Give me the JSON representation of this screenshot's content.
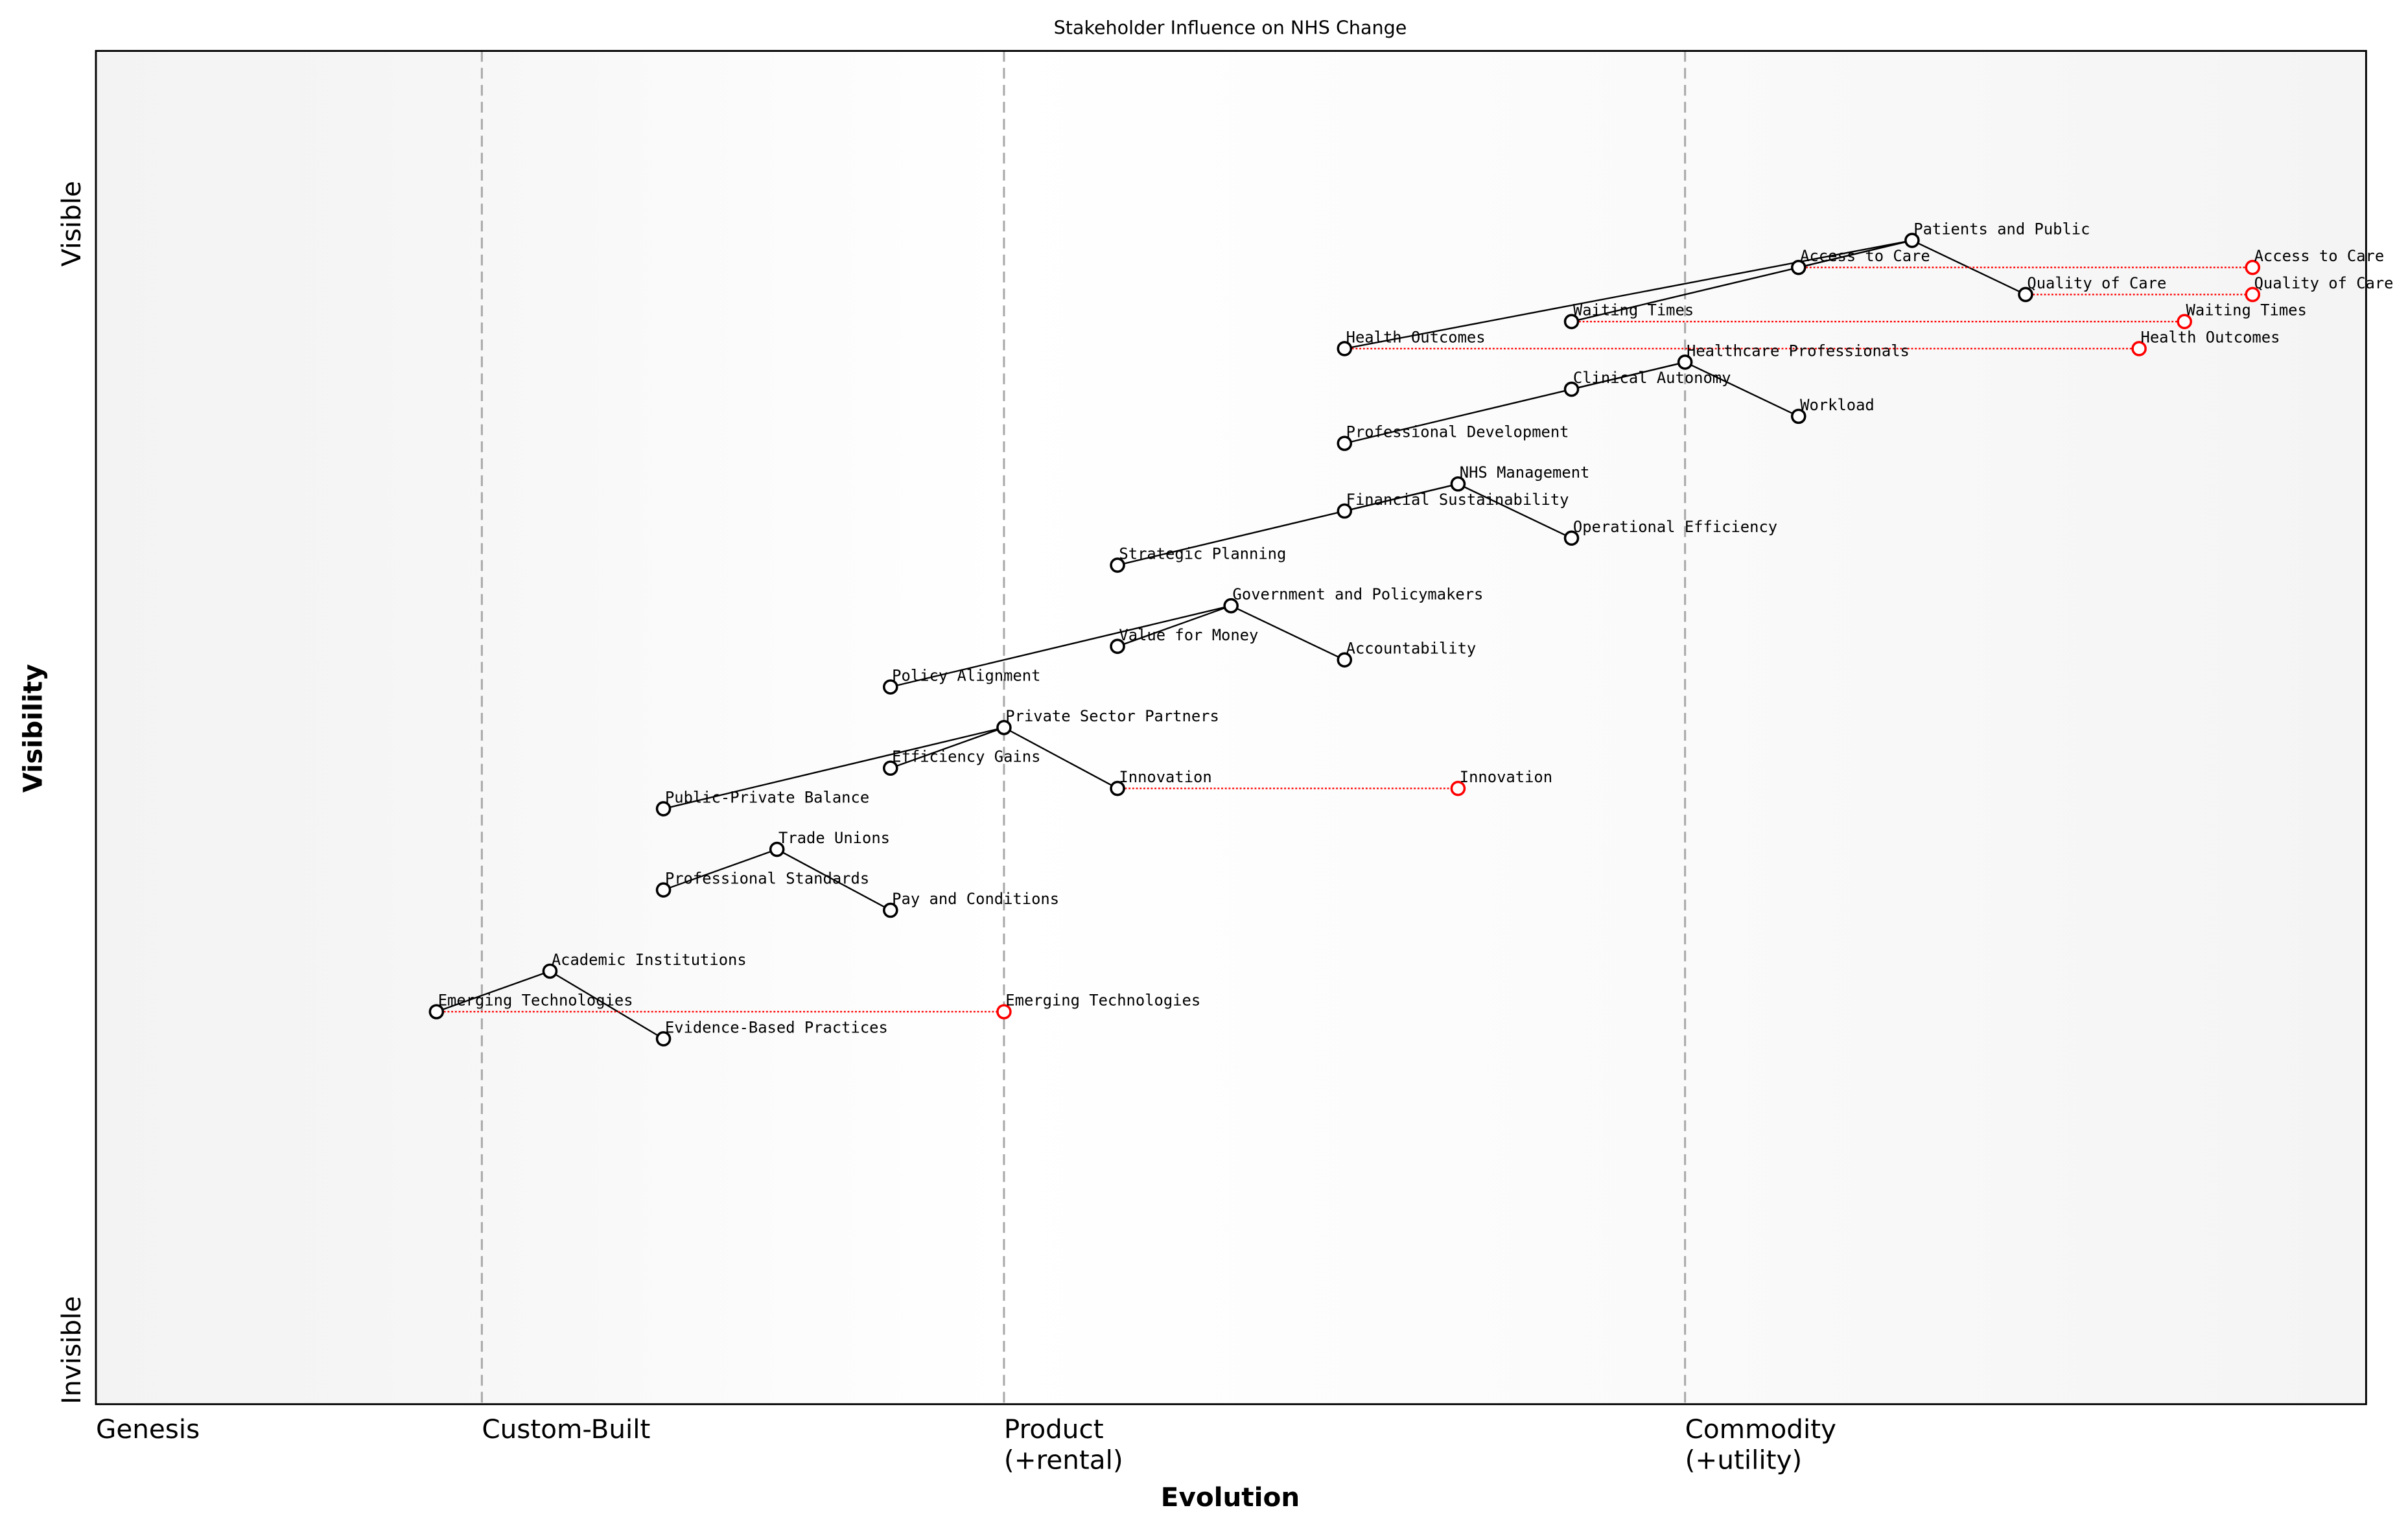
{
  "chart_data": {
    "type": "scatter",
    "title": "Stakeholder Influence on NHS Change",
    "xlabel": "Evolution",
    "ylabel": "Visibility",
    "xlim": [
      0,
      1
    ],
    "ylim": [
      0,
      1
    ],
    "grid": false,
    "x_stages": [
      {
        "label": "Genesis",
        "x": 0.0
      },
      {
        "label": "Custom-Built",
        "x": 0.17
      },
      {
        "label": "Product\n(+rental)",
        "x": 0.4
      },
      {
        "label": "Commodity\n(+utility)",
        "x": 0.7
      }
    ],
    "y_tick_labels": {
      "top": "Visible",
      "bottom": "Invisible"
    },
    "colors": {
      "component": "#000000",
      "evolution": "#ff0000",
      "stage_line": "#aaaaaa"
    },
    "components": [
      {
        "name": "Patients and Public",
        "x": 0.8,
        "y": 0.86
      },
      {
        "name": "Access to Care",
        "x": 0.75,
        "y": 0.84
      },
      {
        "name": "Quality of Care",
        "x": 0.85,
        "y": 0.82
      },
      {
        "name": "Waiting Times",
        "x": 0.65,
        "y": 0.8
      },
      {
        "name": "Health Outcomes",
        "x": 0.55,
        "y": 0.78
      },
      {
        "name": "Healthcare Professionals",
        "x": 0.7,
        "y": 0.77
      },
      {
        "name": "Clinical Autonomy",
        "x": 0.65,
        "y": 0.75
      },
      {
        "name": "Workload",
        "x": 0.75,
        "y": 0.73
      },
      {
        "name": "Professional Development",
        "x": 0.55,
        "y": 0.71
      },
      {
        "name": "NHS Management",
        "x": 0.6,
        "y": 0.68
      },
      {
        "name": "Financial Sustainability",
        "x": 0.55,
        "y": 0.66
      },
      {
        "name": "Operational Efficiency",
        "x": 0.65,
        "y": 0.64
      },
      {
        "name": "Strategic Planning",
        "x": 0.45,
        "y": 0.62
      },
      {
        "name": "Government and Policymakers",
        "x": 0.5,
        "y": 0.59
      },
      {
        "name": "Value for Money",
        "x": 0.45,
        "y": 0.56
      },
      {
        "name": "Accountability",
        "x": 0.55,
        "y": 0.55
      },
      {
        "name": "Policy Alignment",
        "x": 0.35,
        "y": 0.53
      },
      {
        "name": "Private Sector Partners",
        "x": 0.4,
        "y": 0.5
      },
      {
        "name": "Efficiency Gains",
        "x": 0.35,
        "y": 0.47
      },
      {
        "name": "Innovation",
        "x": 0.45,
        "y": 0.455
      },
      {
        "name": "Public-Private Balance",
        "x": 0.25,
        "y": 0.44
      },
      {
        "name": "Trade Unions",
        "x": 0.3,
        "y": 0.41
      },
      {
        "name": "Professional Standards",
        "x": 0.25,
        "y": 0.38
      },
      {
        "name": "Pay and Conditions",
        "x": 0.35,
        "y": 0.365
      },
      {
        "name": "Academic Institutions",
        "x": 0.2,
        "y": 0.32
      },
      {
        "name": "Emerging Technologies",
        "x": 0.15,
        "y": 0.29
      },
      {
        "name": "Evidence-Based Practices",
        "x": 0.25,
        "y": 0.27
      }
    ],
    "links": [
      [
        "Patients and Public",
        "Access to Care"
      ],
      [
        "Patients and Public",
        "Quality of Care"
      ],
      [
        "Patients and Public",
        "Waiting Times"
      ],
      [
        "Patients and Public",
        "Health Outcomes"
      ],
      [
        "Healthcare Professionals",
        "Clinical Autonomy"
      ],
      [
        "Healthcare Professionals",
        "Workload"
      ],
      [
        "Healthcare Professionals",
        "Professional Development"
      ],
      [
        "NHS Management",
        "Financial Sustainability"
      ],
      [
        "NHS Management",
        "Operational Efficiency"
      ],
      [
        "NHS Management",
        "Strategic Planning"
      ],
      [
        "Government and Policymakers",
        "Value for Money"
      ],
      [
        "Government and Policymakers",
        "Accountability"
      ],
      [
        "Government and Policymakers",
        "Policy Alignment"
      ],
      [
        "Private Sector Partners",
        "Efficiency Gains"
      ],
      [
        "Private Sector Partners",
        "Innovation"
      ],
      [
        "Private Sector Partners",
        "Public-Private Balance"
      ],
      [
        "Trade Unions",
        "Professional Standards"
      ],
      [
        "Trade Unions",
        "Pay and Conditions"
      ],
      [
        "Academic Institutions",
        "Emerging Technologies"
      ],
      [
        "Academic Institutions",
        "Evidence-Based Practices"
      ]
    ],
    "evolutions": [
      {
        "name": "Access to Care",
        "to_x": 0.95
      },
      {
        "name": "Quality of Care",
        "to_x": 0.95
      },
      {
        "name": "Waiting Times",
        "to_x": 0.92
      },
      {
        "name": "Health Outcomes",
        "to_x": 0.9
      },
      {
        "name": "Innovation",
        "to_x": 0.6
      },
      {
        "name": "Emerging Technologies",
        "to_x": 0.4
      }
    ]
  }
}
